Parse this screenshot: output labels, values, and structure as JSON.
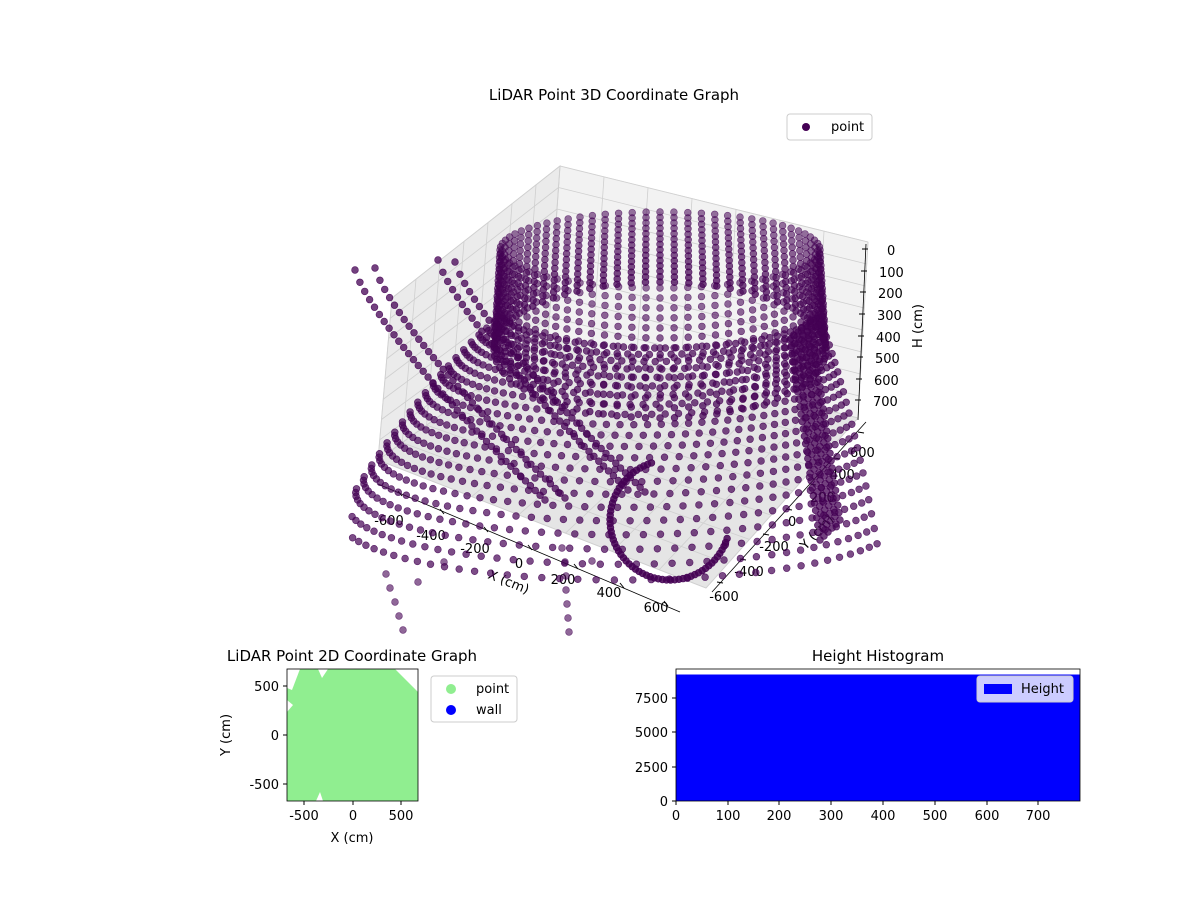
{
  "chart_data": [
    {
      "type": "scatter",
      "projection": "3d",
      "title": "LiDAR Point 3D Coordinate Graph",
      "xlabel": "X (cm)",
      "ylabel": "Y (cm)",
      "zlabel": "H (cm)",
      "xlim": [
        -700,
        700
      ],
      "ylim": [
        -700,
        700
      ],
      "zlim": [
        0,
        780
      ],
      "z_inverted": true,
      "xticks": [
        "-600",
        "-400",
        "-200",
        "0",
        "200",
        "400",
        "600"
      ],
      "yticks": [
        "-600",
        "-400",
        "-200",
        "0",
        "200",
        "400",
        "600"
      ],
      "zticks": [
        "0",
        "100",
        "200",
        "300",
        "400",
        "500",
        "600",
        "700"
      ],
      "grid": true,
      "legend": {
        "placement": "upper-right",
        "entries": [
          {
            "name": "point",
            "color": "#440154"
          }
        ]
      },
      "series": [
        {
          "name": "point",
          "color": "#440154",
          "description_of_shape": "points along arcs sweeping outward with height",
          "sample_points": [
            {
              "x": 600,
              "y": 0,
              "z": 0
            },
            {
              "x": 580,
              "y": 150,
              "z": 60
            },
            {
              "x": 500,
              "y": 300,
              "z": 150
            },
            {
              "x": 300,
              "y": 500,
              "z": 300
            },
            {
              "x": 0,
              "y": 600,
              "z": 450
            },
            {
              "x": -300,
              "y": 500,
              "z": 600
            },
            {
              "x": -600,
              "y": 0,
              "z": 700
            },
            {
              "x": -300,
              "y": -500,
              "z": 700
            },
            {
              "x": 300,
              "y": -500,
              "z": 650
            },
            {
              "x": 600,
              "y": -200,
              "z": 720
            }
          ]
        }
      ]
    },
    {
      "type": "scatter",
      "title": "LiDAR Point 2D Coordinate Graph",
      "xlabel": "X (cm)",
      "ylabel": "Y (cm)",
      "xlim": [
        -680,
        680
      ],
      "ylim": [
        -680,
        680
      ],
      "xticks": [
        -500,
        0,
        500
      ],
      "yticks": [
        -500,
        0,
        500
      ],
      "legend": {
        "placement": "outside-right",
        "entries": [
          {
            "name": "point",
            "color": "#90ee90"
          },
          {
            "name": "wall",
            "color": "#0000ff"
          }
        ]
      },
      "series": [
        {
          "name": "point",
          "color": "#90ee90",
          "note": "dense fill covering plot area"
        },
        {
          "name": "wall",
          "color": "#0000ff",
          "values": []
        }
      ]
    },
    {
      "type": "bar",
      "subtype": "histogram",
      "title": "Height Histogram",
      "xlim": [
        0,
        780
      ],
      "ylim": [
        0,
        9600
      ],
      "xticks": [
        0,
        100,
        200,
        300,
        400,
        500,
        600,
        700
      ],
      "yticks": [
        0,
        2500,
        5000,
        7500
      ],
      "legend": {
        "placement": "upper-right",
        "entries": [
          {
            "name": "Height",
            "color": "#0000ff"
          }
        ]
      },
      "series": [
        {
          "name": "Height",
          "color": "#0000ff",
          "bin_range": [
            0,
            780
          ],
          "count_per_bin": 9200
        }
      ]
    }
  ]
}
